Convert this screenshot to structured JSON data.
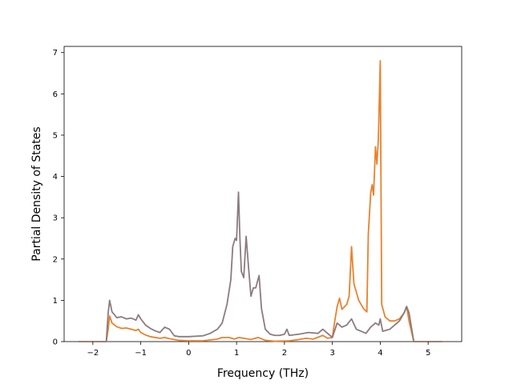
{
  "chart_data": {
    "type": "line",
    "title": "",
    "xlabel": "Frequency (THz)",
    "ylabel": "Partial Density of States",
    "xlim": [
      -2.6,
      5.7
    ],
    "ylim": [
      0,
      7.15
    ],
    "xticks": [
      -2,
      -1,
      0,
      1,
      2,
      3,
      4,
      5
    ],
    "xtick_labels": [
      "−2",
      "−1",
      "0",
      "1",
      "2",
      "3",
      "4",
      "5"
    ],
    "yticks": [
      0,
      1,
      2,
      3,
      4,
      5,
      6,
      7
    ],
    "ytick_labels": [
      "0",
      "1",
      "2",
      "3",
      "4",
      "5",
      "6",
      "7"
    ],
    "grid": false,
    "legend": "none",
    "series": [
      {
        "color": "#e8822d",
        "points": [
          [
            -2.3,
            0
          ],
          [
            -1.72,
            0
          ],
          [
            -1.68,
            0.3
          ],
          [
            -1.65,
            0.62
          ],
          [
            -1.6,
            0.45
          ],
          [
            -1.5,
            0.36
          ],
          [
            -1.4,
            0.32
          ],
          [
            -1.3,
            0.33
          ],
          [
            -1.2,
            0.3
          ],
          [
            -1.1,
            0.27
          ],
          [
            -1.05,
            0.3
          ],
          [
            -1.0,
            0.22
          ],
          [
            -0.9,
            0.16
          ],
          [
            -0.8,
            0.12
          ],
          [
            -0.6,
            0.08
          ],
          [
            -0.5,
            0.1
          ],
          [
            -0.4,
            0.07
          ],
          [
            -0.2,
            0.03
          ],
          [
            0.0,
            0.02
          ],
          [
            0.3,
            0.02
          ],
          [
            0.6,
            0.06
          ],
          [
            0.7,
            0.1
          ],
          [
            0.85,
            0.1
          ],
          [
            0.95,
            0.06
          ],
          [
            1.05,
            0.1
          ],
          [
            1.15,
            0.08
          ],
          [
            1.3,
            0.05
          ],
          [
            1.45,
            0.1
          ],
          [
            1.6,
            0.03
          ],
          [
            1.8,
            0.01
          ],
          [
            2.1,
            0.02
          ],
          [
            2.3,
            0.05
          ],
          [
            2.45,
            0.08
          ],
          [
            2.6,
            0.06
          ],
          [
            2.8,
            0.15
          ],
          [
            2.9,
            0.08
          ],
          [
            3.0,
            0.1
          ],
          [
            3.05,
            0.5
          ],
          [
            3.1,
            0.85
          ],
          [
            3.15,
            1.05
          ],
          [
            3.2,
            0.78
          ],
          [
            3.3,
            0.9
          ],
          [
            3.35,
            1.1
          ],
          [
            3.4,
            2.3
          ],
          [
            3.45,
            1.4
          ],
          [
            3.55,
            1.0
          ],
          [
            3.65,
            0.8
          ],
          [
            3.72,
            0.72
          ],
          [
            3.75,
            2.6
          ],
          [
            3.8,
            3.6
          ],
          [
            3.83,
            3.8
          ],
          [
            3.86,
            3.55
          ],
          [
            3.9,
            4.72
          ],
          [
            3.93,
            4.3
          ],
          [
            3.96,
            4.9
          ],
          [
            4.0,
            6.8
          ],
          [
            4.03,
            0.9
          ],
          [
            4.1,
            0.6
          ],
          [
            4.2,
            0.5
          ],
          [
            4.3,
            0.5
          ],
          [
            4.4,
            0.55
          ],
          [
            4.5,
            0.7
          ],
          [
            4.55,
            0.85
          ],
          [
            4.6,
            0.5
          ],
          [
            4.7,
            0
          ],
          [
            5.3,
            0
          ]
        ]
      },
      {
        "color": "#8c7b7f",
        "points": [
          [
            -2.3,
            0
          ],
          [
            -1.72,
            0
          ],
          [
            -1.68,
            0.7
          ],
          [
            -1.65,
            1.0
          ],
          [
            -1.6,
            0.72
          ],
          [
            -1.5,
            0.58
          ],
          [
            -1.4,
            0.6
          ],
          [
            -1.3,
            0.55
          ],
          [
            -1.2,
            0.57
          ],
          [
            -1.1,
            0.52
          ],
          [
            -1.05,
            0.65
          ],
          [
            -1.0,
            0.55
          ],
          [
            -0.9,
            0.4
          ],
          [
            -0.8,
            0.32
          ],
          [
            -0.7,
            0.26
          ],
          [
            -0.6,
            0.22
          ],
          [
            -0.5,
            0.35
          ],
          [
            -0.4,
            0.3
          ],
          [
            -0.3,
            0.14
          ],
          [
            -0.2,
            0.12
          ],
          [
            0.0,
            0.12
          ],
          [
            0.3,
            0.14
          ],
          [
            0.45,
            0.2
          ],
          [
            0.6,
            0.3
          ],
          [
            0.7,
            0.45
          ],
          [
            0.8,
            0.9
          ],
          [
            0.88,
            1.5
          ],
          [
            0.92,
            2.3
          ],
          [
            0.97,
            2.5
          ],
          [
            1.0,
            2.45
          ],
          [
            1.04,
            3.62
          ],
          [
            1.07,
            2.5
          ],
          [
            1.1,
            1.7
          ],
          [
            1.15,
            1.55
          ],
          [
            1.2,
            2.55
          ],
          [
            1.25,
            1.8
          ],
          [
            1.3,
            1.1
          ],
          [
            1.35,
            1.3
          ],
          [
            1.4,
            1.3
          ],
          [
            1.47,
            1.6
          ],
          [
            1.52,
            0.8
          ],
          [
            1.6,
            0.3
          ],
          [
            1.7,
            0.18
          ],
          [
            1.8,
            0.15
          ],
          [
            1.9,
            0.15
          ],
          [
            2.0,
            0.18
          ],
          [
            2.05,
            0.3
          ],
          [
            2.1,
            0.15
          ],
          [
            2.3,
            0.18
          ],
          [
            2.5,
            0.22
          ],
          [
            2.7,
            0.2
          ],
          [
            2.8,
            0.3
          ],
          [
            2.9,
            0.2
          ],
          [
            3.0,
            0.1
          ],
          [
            3.1,
            0.45
          ],
          [
            3.2,
            0.35
          ],
          [
            3.3,
            0.4
          ],
          [
            3.4,
            0.55
          ],
          [
            3.5,
            0.3
          ],
          [
            3.6,
            0.25
          ],
          [
            3.7,
            0.2
          ],
          [
            3.8,
            0.35
          ],
          [
            3.9,
            0.45
          ],
          [
            3.97,
            0.4
          ],
          [
            4.0,
            0.55
          ],
          [
            4.05,
            0.25
          ],
          [
            4.2,
            0.3
          ],
          [
            4.3,
            0.4
          ],
          [
            4.4,
            0.5
          ],
          [
            4.5,
            0.7
          ],
          [
            4.55,
            0.85
          ],
          [
            4.6,
            0.7
          ],
          [
            4.7,
            0
          ],
          [
            5.3,
            0
          ]
        ]
      }
    ]
  }
}
